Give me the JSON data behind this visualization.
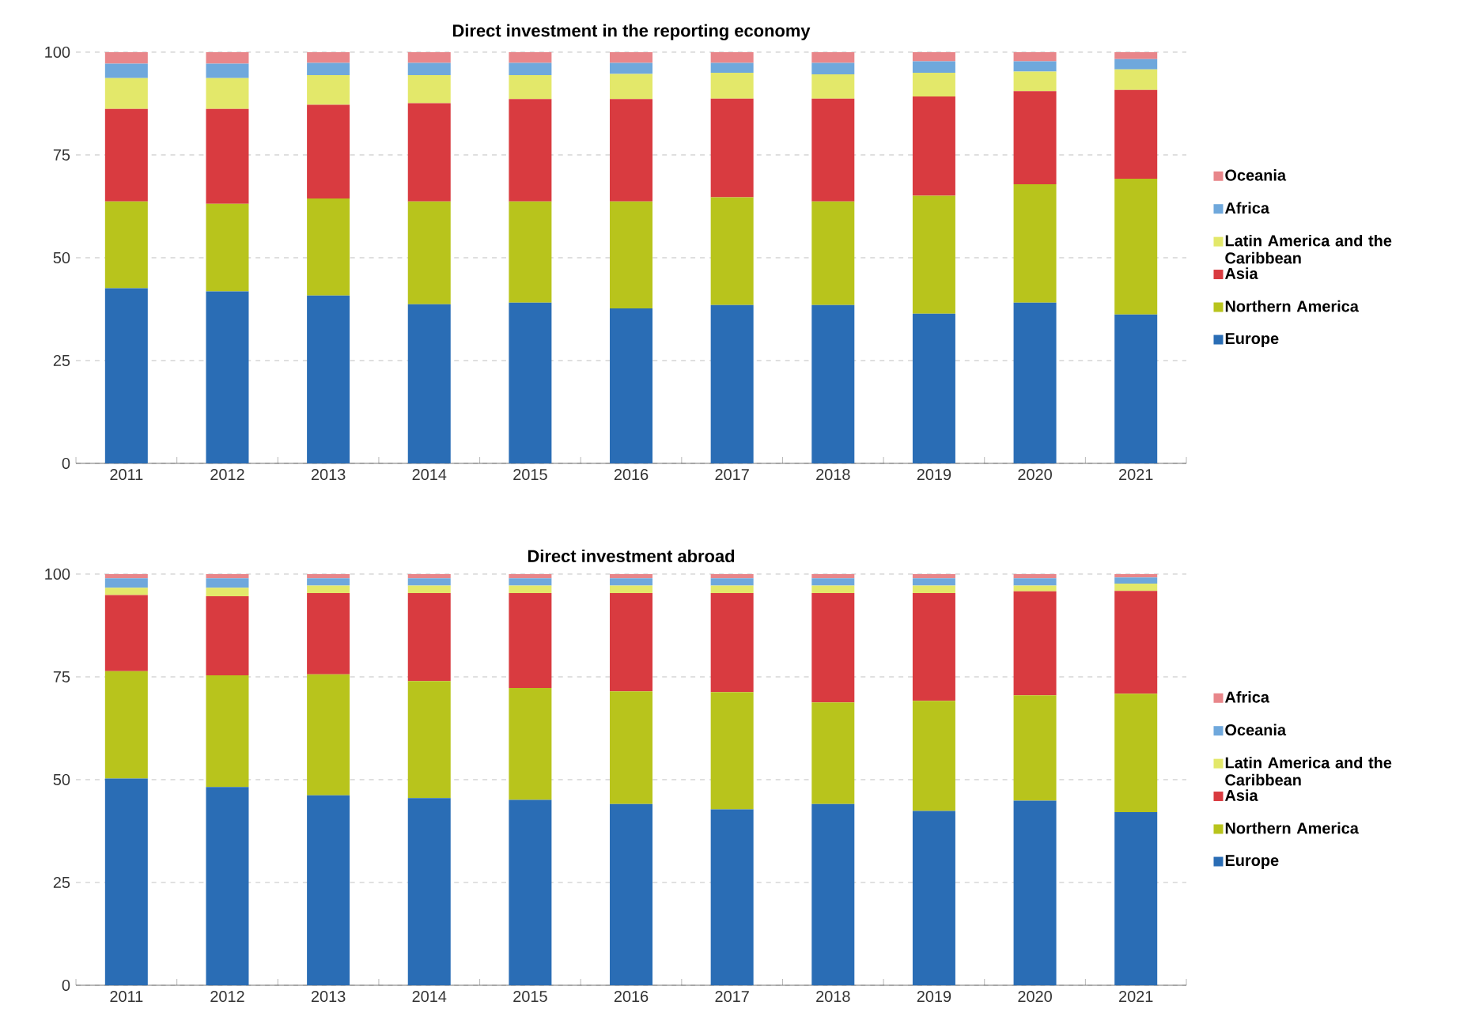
{
  "chart_data": [
    {
      "type": "bar",
      "title": "Direct investment in the reporting economy",
      "stacked": true,
      "grid": "y",
      "legend": "right",
      "ylim": [
        0,
        100
      ],
      "yticks": [
        0,
        25,
        50,
        75,
        100
      ],
      "categories": [
        "2011",
        "2012",
        "2013",
        "2014",
        "2015",
        "2016",
        "2017",
        "2018",
        "2019",
        "2020",
        "2021"
      ],
      "series": [
        {
          "name": "Europe",
          "color": "#2a6db5",
          "values": [
            42.6,
            41.8,
            40.8,
            38.7,
            39.1,
            37.7,
            38.5,
            38.5,
            36.4,
            39.1,
            36.2
          ]
        },
        {
          "name": "Northern America",
          "color": "#b8c41c",
          "values": [
            21.1,
            21.3,
            23.6,
            25.0,
            24.6,
            26.0,
            26.2,
            25.2,
            28.7,
            28.8,
            33.0
          ]
        },
        {
          "name": "Asia",
          "color": "#d93b40",
          "values": [
            22.5,
            23.1,
            22.8,
            23.9,
            24.9,
            24.9,
            24.0,
            25.0,
            24.1,
            22.6,
            21.6
          ]
        },
        {
          "name": "Latin America and the Caribbean",
          "color": "#e3e86a",
          "values": [
            7.5,
            7.5,
            7.2,
            6.8,
            5.8,
            6.1,
            6.3,
            5.9,
            5.8,
            4.8,
            5.0
          ]
        },
        {
          "name": "Africa",
          "color": "#6fa8dc",
          "values": [
            3.5,
            3.5,
            3.0,
            3.0,
            3.0,
            2.7,
            2.4,
            2.8,
            2.8,
            2.5,
            2.5
          ]
        },
        {
          "name": "Oceania",
          "color": "#e8868a",
          "values": [
            2.8,
            2.8,
            2.6,
            2.6,
            2.6,
            2.6,
            2.6,
            2.6,
            2.2,
            2.2,
            1.7
          ]
        }
      ]
    },
    {
      "type": "bar",
      "title": "Direct investment abroad",
      "stacked": true,
      "grid": "y",
      "legend": "right",
      "ylim": [
        0,
        100
      ],
      "yticks": [
        0,
        25,
        50,
        75,
        100
      ],
      "categories": [
        "2011",
        "2012",
        "2013",
        "2014",
        "2015",
        "2016",
        "2017",
        "2018",
        "2019",
        "2020",
        "2021"
      ],
      "series": [
        {
          "name": "Europe",
          "color": "#2a6db5",
          "values": [
            50.3,
            48.2,
            46.2,
            45.5,
            45.1,
            44.1,
            42.8,
            44.1,
            42.4,
            44.9,
            42.1
          ]
        },
        {
          "name": "Northern America",
          "color": "#b8c41c",
          "values": [
            26.1,
            27.2,
            29.4,
            28.5,
            27.2,
            27.4,
            28.5,
            24.7,
            26.8,
            25.6,
            28.8
          ]
        },
        {
          "name": "Asia",
          "color": "#d93b40",
          "values": [
            18.5,
            19.2,
            19.8,
            21.4,
            23.1,
            23.9,
            24.1,
            26.6,
            26.2,
            25.3,
            25.0
          ]
        },
        {
          "name": "Latin America and the Caribbean",
          "color": "#e3e86a",
          "values": [
            1.8,
            2.1,
            1.8,
            1.8,
            1.8,
            1.8,
            1.8,
            1.8,
            1.8,
            1.4,
            1.8
          ]
        },
        {
          "name": "Oceania",
          "color": "#6fa8dc",
          "values": [
            2.3,
            2.3,
            1.8,
            1.8,
            1.8,
            1.8,
            1.8,
            1.8,
            1.8,
            1.8,
            1.5
          ]
        },
        {
          "name": "Africa",
          "color": "#e8868a",
          "values": [
            1.0,
            1.0,
            1.0,
            1.0,
            1.0,
            1.0,
            1.0,
            1.0,
            1.0,
            1.0,
            0.8
          ]
        }
      ]
    }
  ]
}
